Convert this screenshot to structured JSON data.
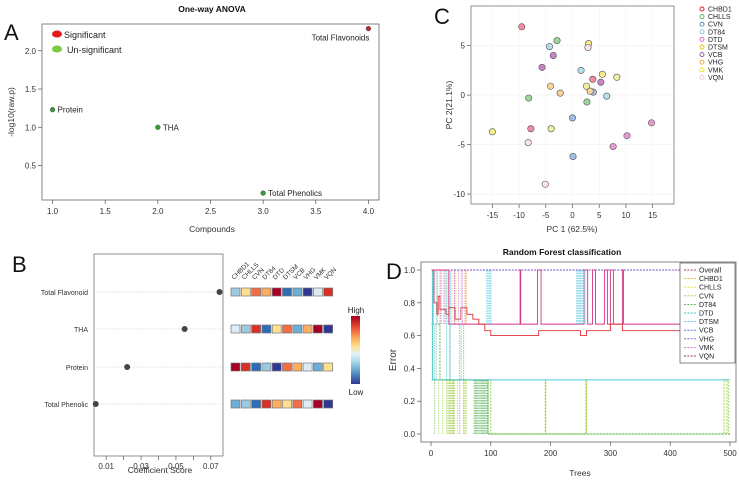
{
  "chart_data": [
    {
      "panel": "A",
      "type": "scatter",
      "title": "One-way ANOVA",
      "xlabel": "Compounds",
      "ylabel": "-log10(raw.p)",
      "xlim": [
        0.9,
        4.1
      ],
      "ylim": [
        0.05,
        2.35
      ],
      "xticks": [
        "1.0",
        "1.5",
        "2.0",
        "2.5",
        "3.0",
        "3.5",
        "4.0"
      ],
      "yticks": [
        "0.5",
        "1.0",
        "1.5",
        "2.0"
      ],
      "legend": [
        {
          "label": "Significant",
          "color": "#e41a1c"
        },
        {
          "label": "Un-significant",
          "color": "#7ac943"
        }
      ],
      "points": [
        {
          "label": "Protein",
          "x": 1.0,
          "y": 1.23,
          "significant": false
        },
        {
          "label": "THA",
          "x": 2.0,
          "y": 1.0,
          "significant": false
        },
        {
          "label": "Total Phenolics",
          "x": 3.0,
          "y": 0.14,
          "significant": false
        },
        {
          "label": "Total Flavonoids",
          "x": 4.0,
          "y": 2.29,
          "significant": true
        }
      ],
      "point_colors": {
        "significant": "#c0282d",
        "nonsignificant": "#3f9b3a"
      }
    },
    {
      "panel": "B",
      "type": "scatter",
      "xlabel": "Coefficient Score",
      "xlim": [
        0.003,
        0.077
      ],
      "xticks": [
        "0.01",
        "0.03",
        "0.05",
        "0.07"
      ],
      "features": [
        "Total Flavonoid",
        "THA",
        "Protein",
        "Total Phenolic"
      ],
      "scores": [
        0.075,
        0.055,
        0.022,
        0.004
      ],
      "heatmap": {
        "columns": [
          "CHBD1",
          "CHLLS",
          "CVN",
          "DT84",
          "DTD",
          "DTSM",
          "VCB",
          "VHG",
          "VMK",
          "VQN"
        ],
        "rows": [
          [
            "#9ecae1",
            "#fee090",
            "#f46d43",
            "#fdae61",
            "#a50026",
            "#2c6db5",
            "#6baed6",
            "#313695",
            "#deebf7",
            "#d73027"
          ],
          [
            "#deebf7",
            "#9ecae1",
            "#d73027",
            "#2c6db5",
            "#fee090",
            "#f46d43",
            "#6baed6",
            "#fdae61",
            "#a50026",
            "#313695"
          ],
          [
            "#a50026",
            "#d73027",
            "#2c6db5",
            "#9ecae1",
            "#313695",
            "#f46d43",
            "#fdae61",
            "#deebf7",
            "#6baed6",
            "#fee090"
          ],
          [
            "#6baed6",
            "#9ecae1",
            "#2c6db5",
            "#d73027",
            "#fdae61",
            "#fee090",
            "#f46d43",
            "#deebf7",
            "#a50026",
            "#313695"
          ]
        ],
        "scale_high": "High",
        "scale_low": "Low",
        "scale_colors": [
          "#a50026",
          "#d73027",
          "#f46d43",
          "#fdae61",
          "#fee090",
          "#e0f3f8",
          "#abd9e9",
          "#74add1",
          "#4575b4",
          "#313695"
        ]
      }
    },
    {
      "panel": "C",
      "type": "scatter",
      "xlabel": "PC 1 (62.5%)",
      "ylabel": "PC 2(21.1%)",
      "xlim": [
        -19,
        19
      ],
      "ylim": [
        -11,
        9
      ],
      "xticks": [
        -15,
        -10,
        -5,
        0,
        5,
        10,
        15
      ],
      "yticks": [
        -10,
        -5,
        0,
        5
      ],
      "groups": [
        {
          "name": "CHBD1",
          "color": "#f08aa0"
        },
        {
          "name": "CHLLS",
          "color": "#9fd49a"
        },
        {
          "name": "CVN",
          "color": "#a3bfe8"
        },
        {
          "name": "DT84",
          "color": "#b5e0f0"
        },
        {
          "name": "DTD",
          "color": "#e49ad0"
        },
        {
          "name": "DTSM",
          "color": "#f6ec8a"
        },
        {
          "name": "VCB",
          "color": "#c983c4"
        },
        {
          "name": "VHG",
          "color": "#fbd39a"
        },
        {
          "name": "VMK",
          "color": "#eef0a0"
        },
        {
          "name": "VQN",
          "color": "#fbe5e8"
        }
      ],
      "legend_stroke": [
        "#e41a1c",
        "#4daf4a",
        "#377eb8",
        "#7fc7e8",
        "#e060c0",
        "#e6c800",
        "#984ea3",
        "#ff9a2e",
        "#e6e600",
        "#f5c6cc"
      ],
      "points": [
        {
          "g": "CHBD1",
          "x": -9.5,
          "y": 6.9
        },
        {
          "g": "CHBD1",
          "x": 3.8,
          "y": 1.6
        },
        {
          "g": "CHBD1",
          "x": -7.8,
          "y": -3.4
        },
        {
          "g": "CHLLS",
          "x": -2.9,
          "y": 5.5
        },
        {
          "g": "CHLLS",
          "x": -8.2,
          "y": -0.3
        },
        {
          "g": "CHLLS",
          "x": 2.7,
          "y": -0.7
        },
        {
          "g": "CVN",
          "x": 3.9,
          "y": 0.3
        },
        {
          "g": "CVN",
          "x": 0.0,
          "y": -2.3
        },
        {
          "g": "CVN",
          "x": 0.1,
          "y": -6.2
        },
        {
          "g": "DT84",
          "x": -4.3,
          "y": 4.9
        },
        {
          "g": "DT84",
          "x": 1.6,
          "y": 2.5
        },
        {
          "g": "DT84",
          "x": 6.4,
          "y": -0.1
        },
        {
          "g": "DTD",
          "x": 14.8,
          "y": -2.8
        },
        {
          "g": "DTD",
          "x": 10.2,
          "y": -4.1
        },
        {
          "g": "DTD",
          "x": 7.6,
          "y": -5.2
        },
        {
          "g": "DTSM",
          "x": 3.0,
          "y": 5.2
        },
        {
          "g": "DTSM",
          "x": 5.6,
          "y": 2.1
        },
        {
          "g": "DTSM",
          "x": -15.0,
          "y": -3.7
        },
        {
          "g": "VCB",
          "x": -3.6,
          "y": 4.0
        },
        {
          "g": "VCB",
          "x": -5.7,
          "y": 2.8
        },
        {
          "g": "VCB",
          "x": 5.3,
          "y": 1.3
        },
        {
          "g": "VHG",
          "x": -4.1,
          "y": 0.9
        },
        {
          "g": "VHG",
          "x": -2.3,
          "y": 0.2
        },
        {
          "g": "VHG",
          "x": 3.3,
          "y": 0.4
        },
        {
          "g": "VMK",
          "x": 8.3,
          "y": 1.8
        },
        {
          "g": "VMK",
          "x": 2.6,
          "y": 0.9
        },
        {
          "g": "VMK",
          "x": -4.0,
          "y": -3.4
        },
        {
          "g": "VQN",
          "x": 2.9,
          "y": 4.8
        },
        {
          "g": "VQN",
          "x": -8.3,
          "y": -4.8
        },
        {
          "g": "VQN",
          "x": -5.1,
          "y": -9.0
        }
      ]
    },
    {
      "panel": "D",
      "type": "line",
      "title": "Random Forest classification",
      "xlabel": "Trees",
      "ylabel": "Error",
      "xlim": [
        0,
        500
      ],
      "ylim": [
        0,
        1
      ],
      "xticks": [
        0,
        100,
        200,
        300,
        400,
        500
      ],
      "yticks": [
        "0.0",
        "0.2",
        "0.4",
        "0.6",
        "0.8",
        "1.0"
      ],
      "legend": [
        {
          "name": "Overall",
          "color": "#b03a48"
        },
        {
          "name": "CHBD1",
          "color": "#f5a623"
        },
        {
          "name": "CHLLS",
          "color": "#e8d62a"
        },
        {
          "name": "CVN",
          "color": "#9acd32"
        },
        {
          "name": "DT84",
          "color": "#4caf50"
        },
        {
          "name": "DTD",
          "color": "#3fbfbf"
        },
        {
          "name": "DTSM",
          "color": "#4cc3e0"
        },
        {
          "name": "VCB",
          "color": "#3b5bdb"
        },
        {
          "name": "VHG",
          "color": "#6a4fc8"
        },
        {
          "name": "VMK",
          "color": "#d36ac2"
        },
        {
          "name": "VQN",
          "color": "#a0307a"
        }
      ],
      "series": [
        {
          "name": "Overall",
          "color": "#e0303a",
          "points": [
            [
              1,
              1
            ],
            [
              5,
              0.8
            ],
            [
              10,
              0.73
            ],
            [
              12,
              0.84
            ],
            [
              15,
              0.76
            ],
            [
              25,
              0.73
            ],
            [
              30,
              0.77
            ],
            [
              40,
              0.7
            ],
            [
              50,
              0.77
            ],
            [
              60,
              0.73
            ],
            [
              70,
              0.7
            ],
            [
              80,
              0.67
            ],
            [
              90,
              0.63
            ],
            [
              100,
              0.6
            ],
            [
              150,
              0.6
            ],
            [
              180,
              0.63
            ],
            [
              250,
              0.6
            ],
            [
              260,
              0.63
            ],
            [
              300,
              0.67
            ],
            [
              320,
              0.63
            ],
            [
              500,
              0.63
            ]
          ]
        },
        {
          "name": "VMK",
          "color": "#d63384",
          "points": [
            [
              1,
              1
            ],
            [
              30,
              0.67
            ],
            [
              100,
              0.67
            ],
            [
              148,
              0.67
            ],
            [
              149,
              1
            ],
            [
              150,
              0.67
            ],
            [
              177,
              0.67
            ],
            [
              178,
              1
            ],
            [
              183,
              1
            ],
            [
              184,
              0.67
            ],
            [
              255,
              0.67
            ],
            [
              256,
              1
            ],
            [
              262,
              0.67
            ],
            [
              270,
              1
            ],
            [
              275,
              0.67
            ],
            [
              290,
              1
            ],
            [
              295,
              0.67
            ],
            [
              300,
              1
            ],
            [
              305,
              0.67
            ],
            [
              320,
              1
            ],
            [
              322,
              0.67
            ],
            [
              425,
              0.67
            ],
            [
              426,
              1
            ],
            [
              428,
              0.67
            ],
            [
              500,
              0.67
            ]
          ]
        },
        {
          "name": "VHG",
          "color": "#6a4fc8",
          "points": [
            [
              1,
              1
            ],
            [
              500,
              1
            ]
          ]
        },
        {
          "name": "DTSM",
          "color": "#4cc3e0",
          "points": [
            [
              1,
              1
            ],
            [
              3,
              0.33
            ],
            [
              500,
              0.33
            ]
          ]
        },
        {
          "name": "DT84",
          "color": "#4caf50",
          "points": [
            [
              1,
              0.67
            ],
            [
              15,
              0.33
            ],
            [
              95,
              0
            ],
            [
              500,
              0
            ]
          ]
        },
        {
          "name": "CVN",
          "color": "#9acd32",
          "points": [
            [
              1,
              0.33
            ],
            [
              100,
              0
            ],
            [
              190,
              0
            ],
            [
              191,
              0.33
            ],
            [
              192,
              0
            ],
            [
              258,
              0
            ],
            [
              259,
              0.33
            ],
            [
              260,
              0
            ],
            [
              487,
              0
            ],
            [
              490,
              0.33
            ],
            [
              495,
              0
            ],
            [
              498,
              0.33
            ]
          ]
        }
      ]
    }
  ]
}
